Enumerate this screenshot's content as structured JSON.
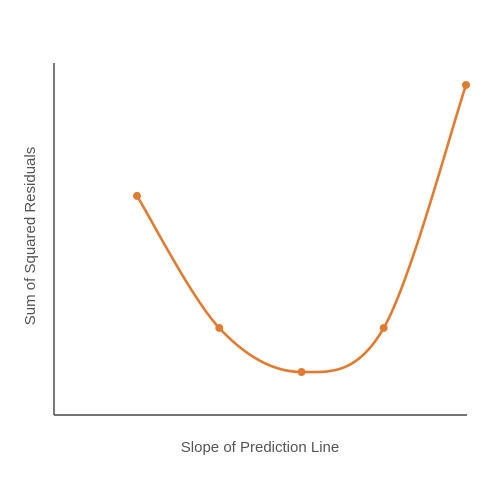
{
  "chart_data": {
    "type": "line",
    "title": "",
    "xlabel": "Slope of Prediction Line",
    "ylabel": "Sum of Squared Residuals",
    "grid": false,
    "legend": "none",
    "ticks": false,
    "smooth": true,
    "xlim": [
      0,
      5
    ],
    "ylim": [
      0,
      10
    ],
    "series": [
      {
        "color": "#e07b30",
        "points": [
          {
            "x": 1,
            "y": 6.2
          },
          {
            "x": 2,
            "y": 2.45
          },
          {
            "x": 3,
            "y": 1.2
          },
          {
            "x": 4,
            "y": 2.45
          },
          {
            "x": 5,
            "y": 9.35
          }
        ]
      }
    ]
  }
}
